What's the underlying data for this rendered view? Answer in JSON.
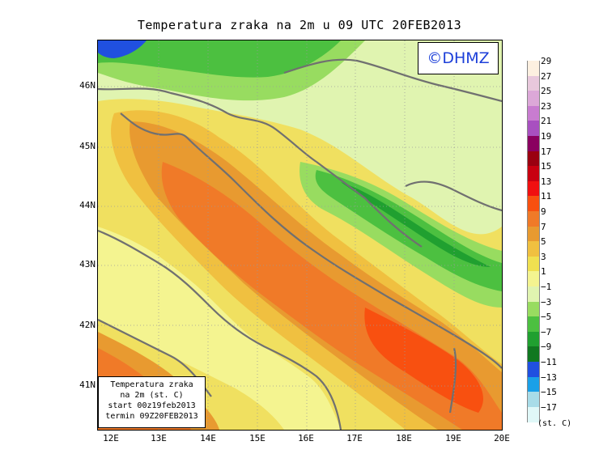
{
  "title": "Temperatura zraka na 2m u 09 UTC 20FEB2013",
  "copyright": "©DHMZ",
  "info": {
    "line1": "Temperatura zraka",
    "line2": "na 2m (st. C)",
    "line3": "start 00z19feb2013",
    "line4": "termin 09Z20FEB2013"
  },
  "lat_labels": [
    "46N",
    "45N",
    "44N",
    "43N",
    "42N",
    "41N"
  ],
  "lon_labels": [
    "12E",
    "13E",
    "14E",
    "15E",
    "16E",
    "17E",
    "18E",
    "19E",
    "20E"
  ],
  "legend": {
    "units": "(st. C)",
    "labels": [
      "29",
      "27",
      "25",
      "23",
      "21",
      "19",
      "17",
      "15",
      "13",
      "11",
      "9",
      "7",
      "5",
      "3",
      "1",
      "−1",
      "−3",
      "−5",
      "−7",
      "−9",
      "−11",
      "−13",
      "−15",
      "−17"
    ],
    "colors": [
      "#fdf0e0",
      "#e8c8dc",
      "#dca8d8",
      "#c87cd0",
      "#a850c0",
      "#8a0060",
      "#9a0010",
      "#c80010",
      "#f01010",
      "#f85010",
      "#f07a28",
      "#e89a30",
      "#f0c040",
      "#f0e050",
      "#f4f490",
      "#e0f4b0",
      "#98dc60",
      "#4cc040",
      "#20a030",
      "#107820",
      "#2050e0",
      "#1aa0e8",
      "#a8dce8",
      "#e0f8f8"
    ]
  }
}
